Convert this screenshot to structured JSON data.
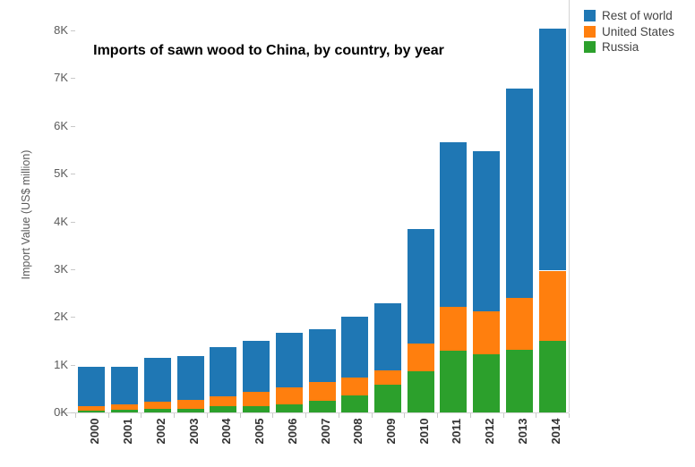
{
  "title": "Imports of sawn wood to China, by country, by year",
  "y_axis": {
    "label": "Import Value (US$ million)",
    "ticks": [
      "0K",
      "1K",
      "2K",
      "3K",
      "4K",
      "5K",
      "6K",
      "7K",
      "8K"
    ]
  },
  "legend": [
    {
      "label": "Rest of world",
      "color": "#1f77b4"
    },
    {
      "label": "United States",
      "color": "#ff7f0e"
    },
    {
      "label": "Russia",
      "color": "#2ca02c"
    }
  ],
  "chart_data": {
    "type": "bar",
    "subtype": "stacked-vertical",
    "title": "Imports of sawn wood to China, by country, by year",
    "xlabel": "",
    "ylabel": "Import Value (US$ million)",
    "ylim": [
      0,
      8000
    ],
    "y_tick_step": 1000,
    "grid": false,
    "legend_position": "top-right",
    "categories": [
      "2000",
      "2001",
      "2002",
      "2003",
      "2004",
      "2005",
      "2006",
      "2007",
      "2008",
      "2009",
      "2010",
      "2011",
      "2012",
      "2013",
      "2014"
    ],
    "stack_order_bottom_to_top": [
      "Russia",
      "United States",
      "Rest of world"
    ],
    "series": [
      {
        "name": "Russia",
        "color": "#2ca02c",
        "values": [
          45,
          55,
          75,
          80,
          125,
          140,
          170,
          240,
          350,
          590,
          870,
          1300,
          1220,
          1320,
          1500
        ]
      },
      {
        "name": "United States",
        "color": "#ff7f0e",
        "values": [
          85,
          110,
          145,
          180,
          210,
          290,
          350,
          390,
          380,
          290,
          570,
          920,
          900,
          1080,
          1470
        ]
      },
      {
        "name": "Rest of world",
        "color": "#1f77b4",
        "values": [
          830,
          795,
          920,
          920,
          1025,
          1060,
          1140,
          1120,
          1280,
          1400,
          2400,
          3440,
          3360,
          4380,
          5060
        ]
      }
    ],
    "totals": [
      960,
      960,
      1140,
      1180,
      1360,
      1490,
      1660,
      1750,
      2010,
      2280,
      3840,
      5660,
      5480,
      6780,
      8030
    ]
  }
}
